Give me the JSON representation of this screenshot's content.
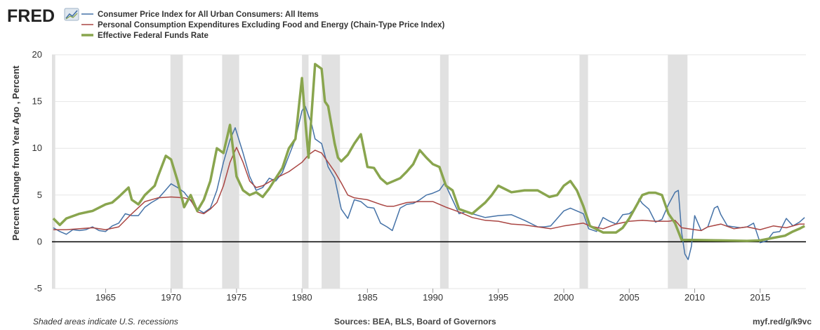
{
  "brand": {
    "logo_text": "FRED",
    "logo_icon": "fred-chart-icon"
  },
  "footer": {
    "recessions_note": "Shaded areas indicate U.S. recessions",
    "sources": "Sources: BEA, BLS, Board of Governors",
    "url": "myf.red/g/k9vc"
  },
  "chart_data": {
    "type": "line",
    "ylabel": "Percent Change from Year Ago , Percent",
    "xlabel": "",
    "title": "",
    "xlim": [
      1960.9,
      2018.5
    ],
    "ylim": [
      -5,
      20
    ],
    "y_ticks": [
      -5,
      0,
      5,
      10,
      15,
      20
    ],
    "x_ticks": [
      1965,
      1970,
      1975,
      1980,
      1985,
      1990,
      1995,
      2000,
      2005,
      2010,
      2015
    ],
    "grid": "horizontal",
    "legend_position": "top-left",
    "zero_line": true,
    "recessions": [
      [
        1960.9,
        1961.15
      ],
      [
        1969.95,
        1970.9
      ],
      [
        1973.9,
        1975.2
      ],
      [
        1980.0,
        1980.5
      ],
      [
        1981.5,
        1982.9
      ],
      [
        1990.55,
        1991.2
      ],
      [
        2001.2,
        2001.85
      ],
      [
        2007.95,
        2009.45
      ]
    ],
    "series": [
      {
        "name": "Consumer Price Index for All Urban Consumers: All Items",
        "color": "#4572a7",
        "width": 1.5,
        "x": [
          1961.0,
          1961.5,
          1962.0,
          1962.5,
          1963.0,
          1963.5,
          1964.0,
          1964.5,
          1965.0,
          1965.5,
          1966.0,
          1966.5,
          1967.0,
          1967.5,
          1968.0,
          1968.5,
          1969.0,
          1969.5,
          1970.0,
          1970.5,
          1971.0,
          1971.5,
          1972.0,
          1972.5,
          1973.0,
          1973.5,
          1974.0,
          1974.5,
          1974.9,
          1975.5,
          1976.0,
          1976.5,
          1977.0,
          1977.5,
          1978.0,
          1978.5,
          1979.0,
          1979.5,
          1980.0,
          1980.25,
          1980.75,
          1981.0,
          1981.5,
          1982.0,
          1982.5,
          1983.0,
          1983.5,
          1984.0,
          1984.5,
          1985.0,
          1985.5,
          1986.0,
          1986.5,
          1986.9,
          1987.5,
          1988.0,
          1988.5,
          1989.0,
          1989.5,
          1990.0,
          1990.5,
          1990.9,
          1991.5,
          1992.0,
          1992.5,
          1993.0,
          1994.0,
          1995.0,
          1996.0,
          1997.0,
          1998.0,
          1998.5,
          1999.0,
          2000.0,
          2000.5,
          2001.0,
          2001.5,
          2001.9,
          2002.5,
          2003.0,
          2003.5,
          2004.0,
          2004.5,
          2005.0,
          2005.5,
          2005.75,
          2006.0,
          2006.5,
          2007.0,
          2007.5,
          2008.0,
          2008.5,
          2008.75,
          2009.0,
          2009.25,
          2009.5,
          2009.75,
          2010.0,
          2010.5,
          2011.0,
          2011.5,
          2011.75,
          2012.0,
          2012.5,
          2013.0,
          2013.5,
          2014.0,
          2014.5,
          2015.0,
          2015.5,
          2016.0,
          2016.5,
          2017.0,
          2017.5,
          2018.0,
          2018.4
        ],
        "values": [
          1.5,
          1.1,
          0.8,
          1.3,
          1.2,
          1.3,
          1.6,
          1.2,
          1.1,
          1.7,
          2.0,
          3.0,
          2.8,
          2.8,
          3.7,
          4.2,
          4.6,
          5.4,
          6.2,
          5.8,
          5.3,
          4.4,
          3.5,
          3.1,
          3.6,
          5.5,
          8.5,
          10.9,
          12.2,
          9.5,
          7.0,
          5.5,
          5.8,
          6.8,
          6.5,
          7.4,
          9.2,
          11.0,
          14.0,
          14.5,
          12.5,
          11.0,
          10.5,
          8.0,
          6.8,
          3.5,
          2.5,
          4.5,
          4.3,
          3.7,
          3.6,
          2.0,
          1.6,
          1.2,
          3.6,
          4.0,
          4.1,
          4.5,
          5.0,
          5.2,
          5.5,
          6.3,
          4.5,
          3.0,
          3.2,
          3.0,
          2.6,
          2.8,
          2.9,
          2.3,
          1.6,
          1.6,
          1.7,
          3.3,
          3.6,
          3.3,
          3.0,
          1.4,
          1.1,
          2.6,
          2.2,
          1.9,
          2.9,
          3.0,
          3.6,
          4.6,
          4.1,
          3.5,
          2.1,
          2.4,
          4.0,
          5.3,
          5.5,
          1.0,
          -1.3,
          -1.9,
          -0.5,
          2.8,
          1.2,
          1.6,
          3.6,
          3.8,
          2.9,
          1.7,
          1.6,
          1.5,
          1.6,
          2.0,
          -0.1,
          0.1,
          1.0,
          1.1,
          2.5,
          1.7,
          2.1,
          2.6
        ],
        "legend_y_offset": 0
      },
      {
        "name": "Personal Consumption Expenditures Excluding Food and Energy (Chain-Type Price Index)",
        "color": "#aa4643",
        "width": 1.5,
        "x": [
          1961.0,
          1962.0,
          1963.0,
          1964.0,
          1965.0,
          1966.0,
          1967.0,
          1968.0,
          1969.0,
          1970.0,
          1971.0,
          1971.5,
          1972.0,
          1972.5,
          1973.0,
          1973.5,
          1974.0,
          1974.5,
          1975.0,
          1975.5,
          1976.0,
          1976.5,
          1977.0,
          1978.0,
          1979.0,
          1980.0,
          1980.5,
          1981.0,
          1981.5,
          1982.0,
          1982.5,
          1983.0,
          1983.5,
          1984.0,
          1985.0,
          1986.0,
          1986.5,
          1987.0,
          1988.0,
          1989.0,
          1990.0,
          1991.0,
          1992.0,
          1993.0,
          1994.0,
          1995.0,
          1996.0,
          1997.0,
          1998.0,
          1999.0,
          2000.0,
          2001.0,
          2001.5,
          2002.0,
          2003.0,
          2004.0,
          2005.0,
          2006.0,
          2007.0,
          2008.0,
          2008.5,
          2009.0,
          2010.0,
          2010.5,
          2011.0,
          2012.0,
          2013.0,
          2014.0,
          2015.0,
          2016.0,
          2017.0,
          2018.0,
          2018.4
        ],
        "values": [
          1.3,
          1.3,
          1.4,
          1.5,
          1.3,
          1.6,
          3.0,
          4.3,
          4.7,
          4.8,
          4.7,
          4.5,
          3.2,
          3.0,
          3.5,
          4.2,
          6.0,
          8.5,
          10.1,
          8.5,
          6.5,
          5.8,
          6.0,
          6.8,
          7.5,
          8.5,
          9.3,
          9.8,
          9.5,
          8.5,
          7.5,
          6.3,
          5.0,
          4.7,
          4.5,
          4.0,
          3.8,
          3.8,
          4.2,
          4.3,
          4.3,
          3.7,
          3.2,
          2.6,
          2.3,
          2.2,
          1.9,
          1.8,
          1.6,
          1.4,
          1.7,
          1.9,
          2.0,
          1.7,
          1.4,
          1.9,
          2.2,
          2.3,
          2.2,
          2.2,
          2.3,
          1.5,
          1.3,
          1.2,
          1.6,
          1.9,
          1.4,
          1.6,
          1.3,
          1.7,
          1.5,
          1.9,
          1.9
        ],
        "legend_y_offset": 1
      },
      {
        "name": "Effective Federal Funds Rate",
        "color": "#89a54e",
        "width": 3.5,
        "x": [
          1961.0,
          1961.5,
          1962.0,
          1963.0,
          1964.0,
          1965.0,
          1965.5,
          1966.0,
          1966.75,
          1967.0,
          1967.5,
          1968.0,
          1968.75,
          1969.0,
          1969.6,
          1970.0,
          1970.5,
          1971.0,
          1971.5,
          1972.0,
          1972.5,
          1973.0,
          1973.5,
          1974.0,
          1974.5,
          1975.0,
          1975.5,
          1976.0,
          1976.5,
          1977.0,
          1977.5,
          1978.0,
          1978.5,
          1979.0,
          1979.5,
          1980.0,
          1980.25,
          1980.5,
          1980.75,
          1981.0,
          1981.5,
          1981.75,
          1982.0,
          1982.5,
          1982.75,
          1983.0,
          1983.5,
          1984.0,
          1984.5,
          1985.0,
          1985.5,
          1986.0,
          1986.5,
          1987.0,
          1987.5,
          1988.0,
          1988.5,
          1989.0,
          1989.5,
          1990.0,
          1990.5,
          1991.0,
          1991.5,
          1992.0,
          1993.0,
          1994.0,
          1994.5,
          1995.0,
          1996.0,
          1997.0,
          1998.0,
          1998.9,
          1999.5,
          2000.0,
          2000.5,
          2001.0,
          2001.5,
          2002.0,
          2003.0,
          2003.5,
          2004.0,
          2004.5,
          2005.0,
          2006.0,
          2006.5,
          2007.0,
          2007.5,
          2008.0,
          2008.5,
          2009.0,
          2010.0,
          2012.0,
          2014.0,
          2015.0,
          2015.9,
          2016.9,
          2017.5,
          2018.0,
          2018.4
        ],
        "values": [
          2.5,
          1.8,
          2.5,
          3.0,
          3.3,
          4.0,
          4.2,
          4.8,
          5.8,
          4.5,
          4.0,
          5.0,
          6.0,
          7.0,
          9.2,
          8.8,
          6.5,
          3.7,
          5.0,
          3.3,
          4.5,
          6.5,
          10.0,
          9.5,
          12.5,
          7.0,
          5.5,
          5.0,
          5.3,
          4.8,
          5.7,
          6.8,
          7.9,
          10.0,
          11.0,
          17.5,
          13.0,
          9.0,
          14.0,
          19.0,
          18.5,
          15.0,
          14.5,
          10.5,
          9.0,
          8.6,
          9.3,
          10.5,
          11.5,
          8.0,
          7.9,
          6.8,
          6.2,
          6.5,
          6.8,
          7.5,
          8.3,
          9.8,
          9.0,
          8.3,
          8.0,
          6.0,
          5.5,
          3.5,
          3.0,
          4.2,
          5.0,
          6.0,
          5.3,
          5.5,
          5.5,
          4.8,
          5.0,
          6.0,
          6.5,
          5.5,
          3.8,
          1.7,
          1.0,
          1.0,
          1.0,
          1.5,
          2.5,
          5.0,
          5.25,
          5.25,
          5.0,
          3.0,
          2.0,
          0.2,
          0.2,
          0.15,
          0.1,
          0.15,
          0.4,
          0.65,
          1.1,
          1.4,
          1.7
        ],
        "legend_y_offset": 2
      }
    ]
  }
}
